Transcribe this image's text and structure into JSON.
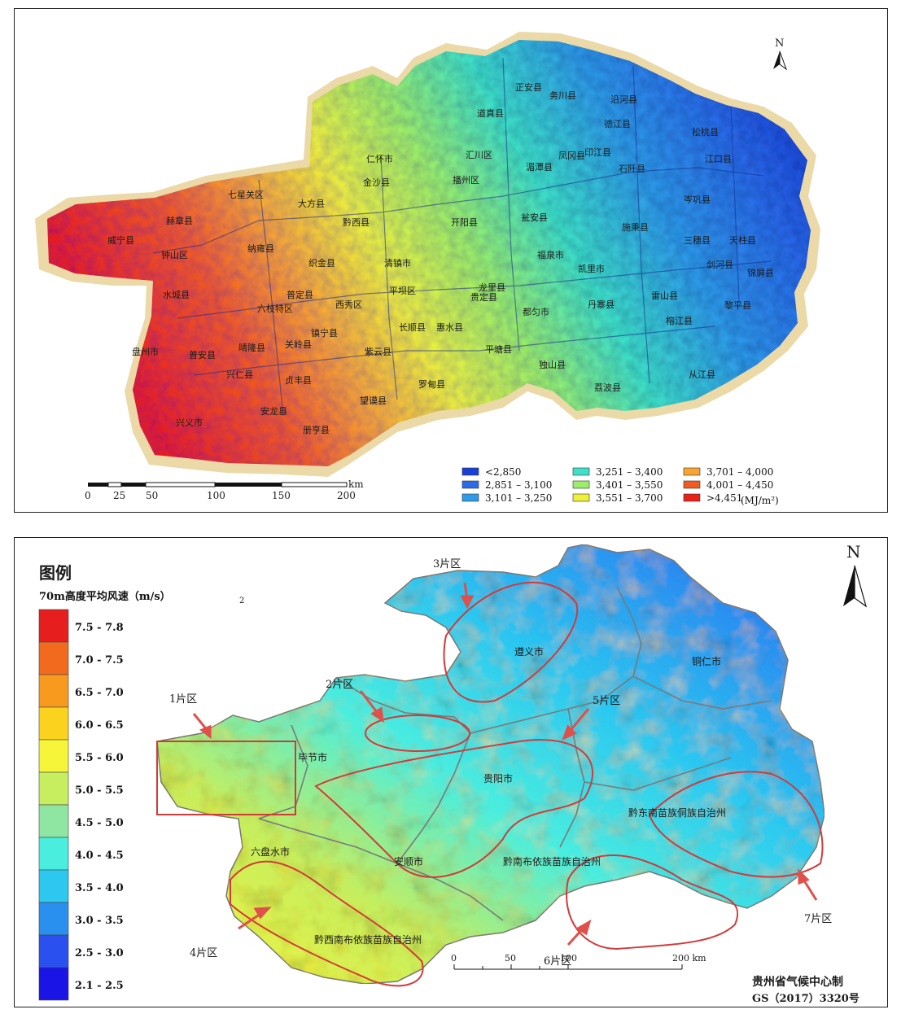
{
  "top_map": {
    "north": "N",
    "county_labels": [
      {
        "t": "道真县"
      },
      {
        "t": "正安县"
      },
      {
        "t": "务川县"
      },
      {
        "t": "德江县"
      },
      {
        "t": "沿河县"
      },
      {
        "t": "松桃县"
      },
      {
        "t": "仁怀市"
      },
      {
        "t": "汇川区"
      },
      {
        "t": "凤冈县"
      },
      {
        "t": "印江县"
      },
      {
        "t": "江口县"
      },
      {
        "t": "金沙县"
      },
      {
        "t": "播州区"
      },
      {
        "t": "湄潭县"
      },
      {
        "t": "石阡县"
      },
      {
        "t": "七星关区"
      },
      {
        "t": "大方县"
      },
      {
        "t": "赫章县"
      },
      {
        "t": "威宁县"
      },
      {
        "t": "黔西县"
      },
      {
        "t": "开阳县"
      },
      {
        "t": "瓮安县"
      },
      {
        "t": "岑巩县"
      },
      {
        "t": "钟山区"
      },
      {
        "t": "纳雍县"
      },
      {
        "t": "织金县"
      },
      {
        "t": "清镇市"
      },
      {
        "t": "福泉市"
      },
      {
        "t": "施秉县"
      },
      {
        "t": "三穗县"
      },
      {
        "t": "天柱县"
      },
      {
        "t": "水城县"
      },
      {
        "t": "普定县"
      },
      {
        "t": "西秀区"
      },
      {
        "t": "平坝区"
      },
      {
        "t": "龙里县"
      },
      {
        "t": "凯里市"
      },
      {
        "t": "剑河县"
      },
      {
        "t": "锦屏县"
      },
      {
        "t": "六枝特区"
      },
      {
        "t": "镇宁县"
      },
      {
        "t": "长顺县"
      },
      {
        "t": "惠水县"
      },
      {
        "t": "贵定县"
      },
      {
        "t": "都匀市"
      },
      {
        "t": "丹寨县"
      },
      {
        "t": "雷山县"
      },
      {
        "t": "黎平县"
      },
      {
        "t": "盘州市"
      },
      {
        "t": "普安县"
      },
      {
        "t": "晴隆县"
      },
      {
        "t": "关岭县"
      },
      {
        "t": "紫云县"
      },
      {
        "t": "平塘县"
      },
      {
        "t": "榕江县"
      },
      {
        "t": "兴仁县"
      },
      {
        "t": "贞丰县"
      },
      {
        "t": "独山县"
      },
      {
        "t": "罗甸县"
      },
      {
        "t": "望谟县"
      },
      {
        "t": "荔波县"
      },
      {
        "t": "安龙县"
      },
      {
        "t": "兴义市"
      },
      {
        "t": "册亨县"
      },
      {
        "t": "从江县"
      }
    ],
    "scale": {
      "unit": "km",
      "ticks": [
        "0",
        "25",
        "50",
        "100",
        "150",
        "200"
      ]
    },
    "legend": [
      {
        "label": "<2,850",
        "color": "#1a3fd6"
      },
      {
        "label": "2,851 – 3,100",
        "color": "#2b6be8"
      },
      {
        "label": "3,101 – 3,250",
        "color": "#2f9be8"
      },
      {
        "label": "3,251 – 3,400",
        "color": "#3ee0c8"
      },
      {
        "label": "3,401 – 3,550",
        "color": "#9aee6a"
      },
      {
        "label": "3,551 – 3,700",
        "color": "#eef03a"
      },
      {
        "label": "3,701 – 4,000",
        "color": "#f7a531"
      },
      {
        "label": "4,001 – 4,450",
        "color": "#f25a1e"
      },
      {
        "label": ">4,451",
        "color": "#e8201a"
      }
    ],
    "legend_unit": "(MJ/m²)"
  },
  "bottom_map": {
    "legend_title": "图例",
    "legend_subtitle": "70m高度平均风速（m/s）",
    "stray_mark": "2",
    "legend": [
      {
        "label": "7.5 - 7.8",
        "color": "#e61e1e"
      },
      {
        "label": "7.0 - 7.5",
        "color": "#f26a1e"
      },
      {
        "label": "6.5 - 7.0",
        "color": "#f79a1e"
      },
      {
        "label": "6.0 - 6.5",
        "color": "#fbd21e"
      },
      {
        "label": "5.5 - 6.0",
        "color": "#f6f53a"
      },
      {
        "label": "5.0 - 5.5",
        "color": "#c6ee5e"
      },
      {
        "label": "4.5 - 5.0",
        "color": "#8ee6a2"
      },
      {
        "label": "4.0 - 4.5",
        "color": "#4aeede"
      },
      {
        "label": "3.5 - 4.0",
        "color": "#2cc8f0"
      },
      {
        "label": "3.0 - 3.5",
        "color": "#2a90f0"
      },
      {
        "label": "2.5 - 3.0",
        "color": "#2a50f0"
      },
      {
        "label": "2.1 - 2.5",
        "color": "#1a14e6"
      }
    ],
    "north": "N",
    "city_labels": [
      "遵义市",
      "铜仁市",
      "毕节市",
      "贵阳市",
      "六盘水市",
      "安顺市",
      "黔南布依族苗族自治州",
      "黔东南苗族侗族自治州",
      "黔西南布依族苗族自治州"
    ],
    "zones": [
      "1片区",
      "2片区",
      "3片区",
      "4片区",
      "5片区",
      "6片区",
      "7片区"
    ],
    "scale": {
      "ticks": [
        "0",
        "50",
        "100",
        "200 km"
      ]
    },
    "credit": "贵州省气候中心制",
    "approval": "GS（2017）3320号"
  }
}
